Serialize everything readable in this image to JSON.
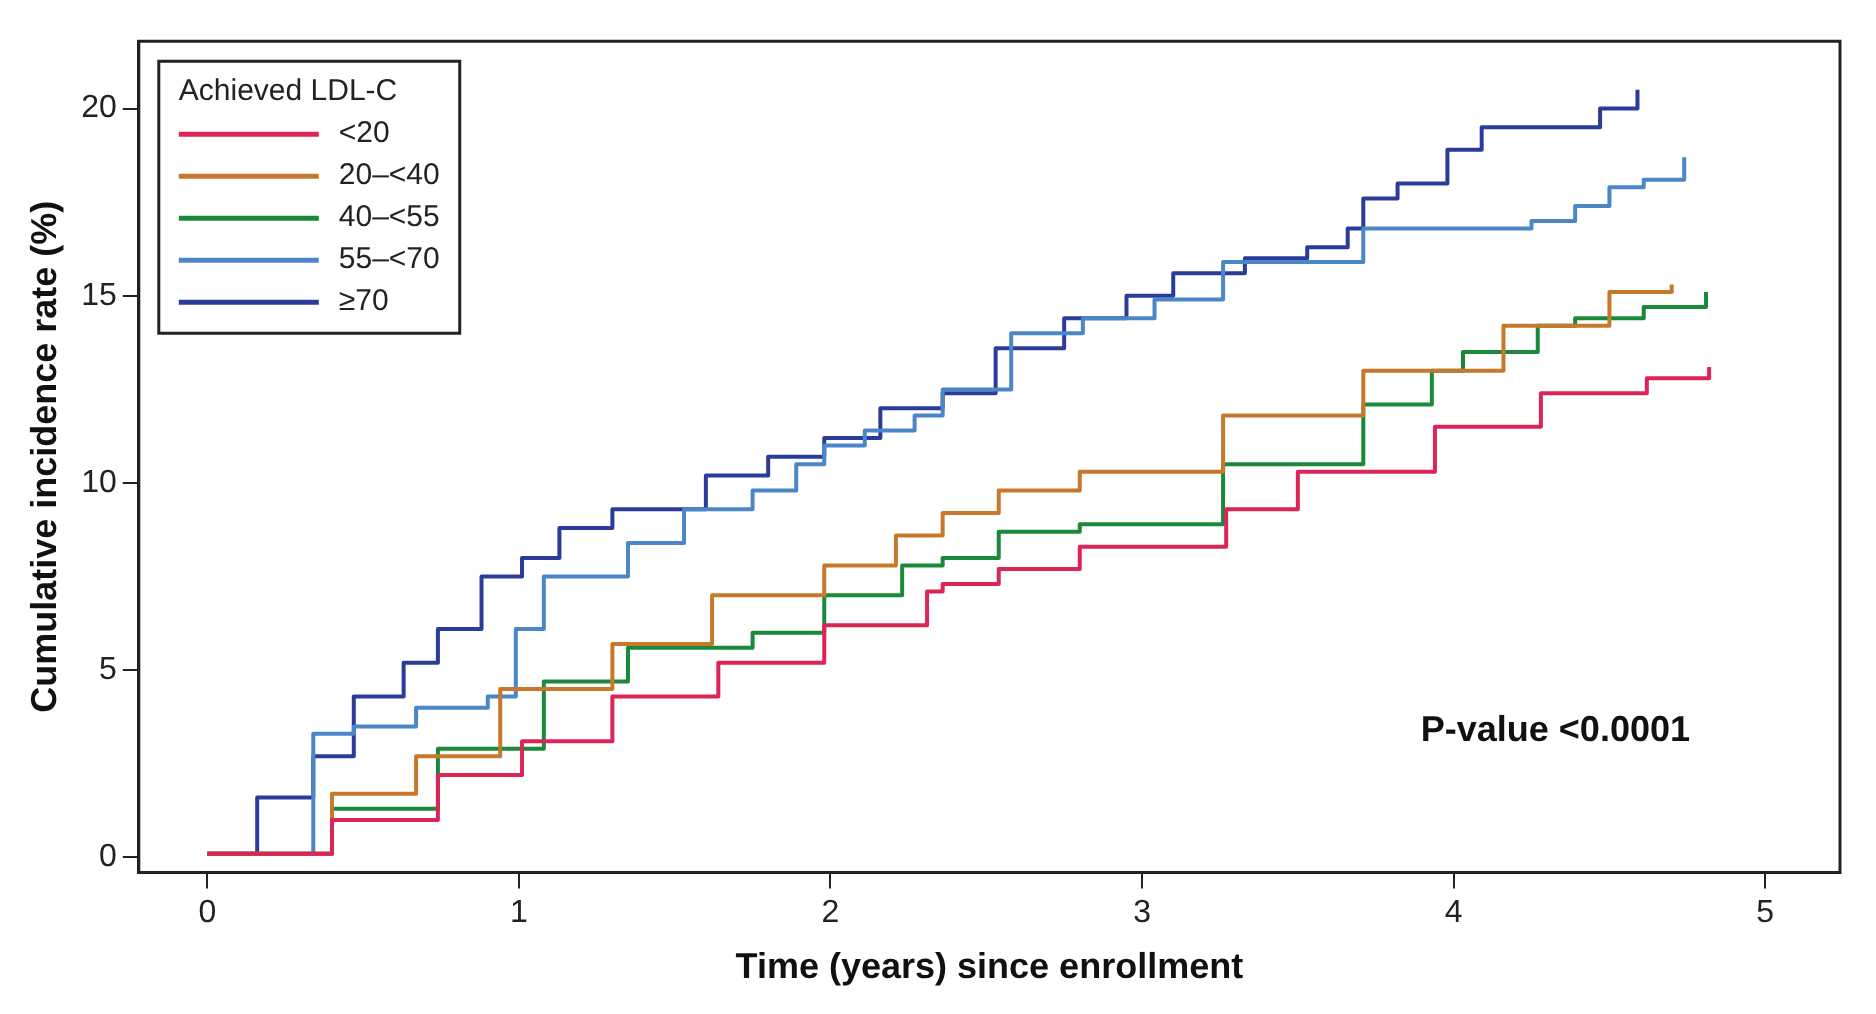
{
  "chart_data": {
    "type": "step",
    "xlabel": "Time (years) since enrollment",
    "ylabel": "Cumulative incidence rate (%)",
    "legend_title": "Achieved LDL-C",
    "legend": "top left",
    "grid": false,
    "xlim": [
      -0.22,
      5.24
    ],
    "ylim": [
      -0.4,
      21.8
    ],
    "xticks": [
      0,
      1,
      2,
      3,
      4,
      5
    ],
    "yticks": [
      0,
      5,
      10,
      15,
      20
    ],
    "annotations": [
      "P-value <0.0001"
    ],
    "series": [
      {
        "name": "<20",
        "color": "#dc2457",
        "x": [
          0,
          0.4,
          0.74,
          1.01,
          1.3,
          1.64,
          1.98,
          2.31,
          2.36,
          2.54,
          2.8,
          3.27,
          3.5,
          3.94,
          4.28,
          4.62,
          4.82
        ],
        "values": [
          0.1,
          1.0,
          2.2,
          3.1,
          4.3,
          5.2,
          6.2,
          7.1,
          7.3,
          7.7,
          8.3,
          9.3,
          10.3,
          11.5,
          12.4,
          12.8,
          13.1
        ]
      },
      {
        "name": "20–<40",
        "color": "#c8782a",
        "x": [
          0,
          0.4,
          0.67,
          0.94,
          1.3,
          1.62,
          1.98,
          2.21,
          2.36,
          2.54,
          2.8,
          3.26,
          3.71,
          4.16,
          4.5,
          4.7
        ],
        "values": [
          0.1,
          1.7,
          2.7,
          4.5,
          5.7,
          7.0,
          7.8,
          8.6,
          9.2,
          9.8,
          10.3,
          11.8,
          13.0,
          14.2,
          15.1,
          15.3
        ]
      },
      {
        "name": "40–<55",
        "color": "#1a8a3a",
        "x": [
          0,
          0.4,
          0.74,
          1.08,
          1.35,
          1.75,
          1.98,
          2.23,
          2.36,
          2.54,
          2.8,
          3.26,
          3.71,
          3.93,
          4.03,
          4.27,
          4.39,
          4.61,
          4.81
        ],
        "values": [
          0.1,
          1.3,
          2.9,
          4.7,
          5.6,
          6.0,
          7.0,
          7.8,
          8.0,
          8.7,
          8.9,
          10.5,
          12.1,
          13.0,
          13.5,
          14.2,
          14.4,
          14.7,
          15.1
        ]
      },
      {
        "name": "55–<70",
        "color": "#4a86c8",
        "x": [
          0,
          0.34,
          0.47,
          0.67,
          0.9,
          0.99,
          1.08,
          1.19,
          1.35,
          1.53,
          1.75,
          1.89,
          1.98,
          2.11,
          2.27,
          2.36,
          2.58,
          2.81,
          3.04,
          3.26,
          3.58,
          3.71,
          3.93,
          4.25,
          4.39,
          4.5,
          4.61,
          4.74
        ],
        "values": [
          0.1,
          3.3,
          3.5,
          4.0,
          4.3,
          6.1,
          7.5,
          7.5,
          8.4,
          9.3,
          9.8,
          10.5,
          11.0,
          11.4,
          11.8,
          12.5,
          14.0,
          14.4,
          14.9,
          15.9,
          15.9,
          16.8,
          16.8,
          17.0,
          17.4,
          17.9,
          18.1,
          18.7
        ]
      },
      {
        "name": "≥70",
        "color": "#2a3c9a",
        "x": [
          0,
          0.16,
          0.27,
          0.34,
          0.47,
          0.63,
          0.74,
          0.88,
          1.01,
          1.13,
          1.3,
          1.6,
          1.8,
          1.98,
          2.16,
          2.36,
          2.53,
          2.75,
          2.95,
          3.1,
          3.33,
          3.53,
          3.66,
          3.71,
          3.82,
          3.98,
          4.09,
          4.34,
          4.47,
          4.59
        ],
        "values": [
          0.1,
          1.6,
          1.6,
          2.7,
          4.3,
          5.2,
          6.1,
          7.5,
          8.0,
          8.8,
          9.3,
          10.2,
          10.7,
          11.2,
          12.0,
          12.4,
          13.6,
          14.4,
          15.0,
          15.6,
          16.0,
          16.3,
          16.8,
          17.6,
          18.0,
          18.9,
          19.5,
          19.5,
          20.0,
          20.5
        ]
      }
    ]
  }
}
